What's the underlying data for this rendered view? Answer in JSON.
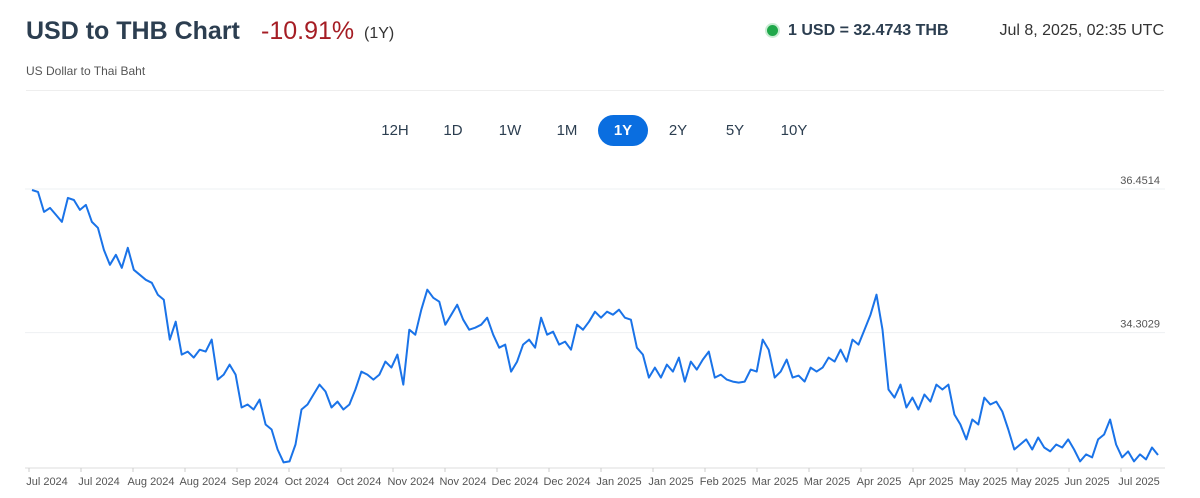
{
  "header": {
    "title": "USD to THB Chart",
    "change": "-10.91%",
    "period": "(1Y)",
    "subtitle": "US Dollar to Thai Baht",
    "rate": "1 USD = 32.4743 THB",
    "timestamp": "Jul 8, 2025, 02:35 UTC"
  },
  "range_buttons": {
    "items": [
      "12H",
      "1D",
      "1W",
      "1M",
      "1Y",
      "2Y",
      "5Y",
      "10Y"
    ],
    "active": "1Y"
  },
  "chart_data": {
    "type": "line",
    "color": "#1a73e8",
    "grid": true,
    "ylim": [
      32.28,
      36.66
    ],
    "yticks": [
      34.3029,
      36.4514
    ],
    "x_labels": [
      "Jul 2024",
      "Jul 2024",
      "Aug 2024",
      "Aug 2024",
      "Sep 2024",
      "Oct 2024",
      "Oct 2024",
      "Nov 2024",
      "Nov 2024",
      "Dec 2024",
      "Dec 2024",
      "Jan 2025",
      "Jan 2025",
      "Feb 2025",
      "Mar 2025",
      "Mar 2025",
      "Apr 2025",
      "Apr 2025",
      "May 2025",
      "May 2025",
      "Jun 2025",
      "Jul 2025"
    ],
    "values": [
      36.436,
      36.407,
      36.108,
      36.168,
      36.063,
      35.959,
      36.317,
      36.287,
      36.138,
      36.213,
      35.959,
      35.87,
      35.541,
      35.318,
      35.467,
      35.273,
      35.571,
      35.243,
      35.168,
      35.094,
      35.049,
      34.87,
      34.795,
      34.199,
      34.467,
      33.975,
      34.02,
      33.93,
      34.049,
      34.02,
      34.199,
      33.602,
      33.676,
      33.826,
      33.676,
      33.184,
      33.229,
      33.154,
      33.303,
      32.93,
      32.856,
      32.557,
      32.363,
      32.378,
      32.632,
      33.154,
      33.229,
      33.378,
      33.527,
      33.423,
      33.184,
      33.273,
      33.154,
      33.229,
      33.453,
      33.721,
      33.676,
      33.602,
      33.676,
      33.87,
      33.781,
      33.975,
      33.527,
      34.348,
      34.273,
      34.646,
      34.945,
      34.825,
      34.766,
      34.422,
      34.572,
      34.721,
      34.497,
      34.348,
      34.378,
      34.422,
      34.527,
      34.273,
      34.079,
      34.124,
      33.721,
      33.87,
      34.124,
      34.199,
      34.079,
      34.527,
      34.273,
      34.318,
      34.124,
      34.169,
      34.049,
      34.422,
      34.348,
      34.467,
      34.616,
      34.527,
      34.616,
      34.572,
      34.646,
      34.527,
      34.497,
      34.079,
      33.975,
      33.632,
      33.781,
      33.632,
      33.826,
      33.721,
      33.93,
      33.572,
      33.87,
      33.751,
      33.9,
      34.02,
      33.632,
      33.676,
      33.602,
      33.572,
      33.557,
      33.572,
      33.751,
      33.721,
      34.199,
      34.049,
      33.632,
      33.721,
      33.9,
      33.632,
      33.661,
      33.572,
      33.781,
      33.721,
      33.781,
      33.93,
      33.87,
      34.049,
      33.87,
      34.199,
      34.124,
      34.348,
      34.572,
      34.87,
      34.348,
      33.453,
      33.333,
      33.527,
      33.184,
      33.333,
      33.154,
      33.378,
      33.273,
      33.527,
      33.453,
      33.527,
      33.08,
      32.93,
      32.707,
      33.005,
      32.93,
      33.333,
      33.229,
      33.273,
      33.124,
      32.856,
      32.557,
      32.632,
      32.707,
      32.557,
      32.736,
      32.587,
      32.528,
      32.632,
      32.587,
      32.707,
      32.557,
      32.378,
      32.483,
      32.438,
      32.707,
      32.781,
      33.005,
      32.632,
      32.438,
      32.528,
      32.378,
      32.483,
      32.408,
      32.587,
      32.474
    ]
  }
}
